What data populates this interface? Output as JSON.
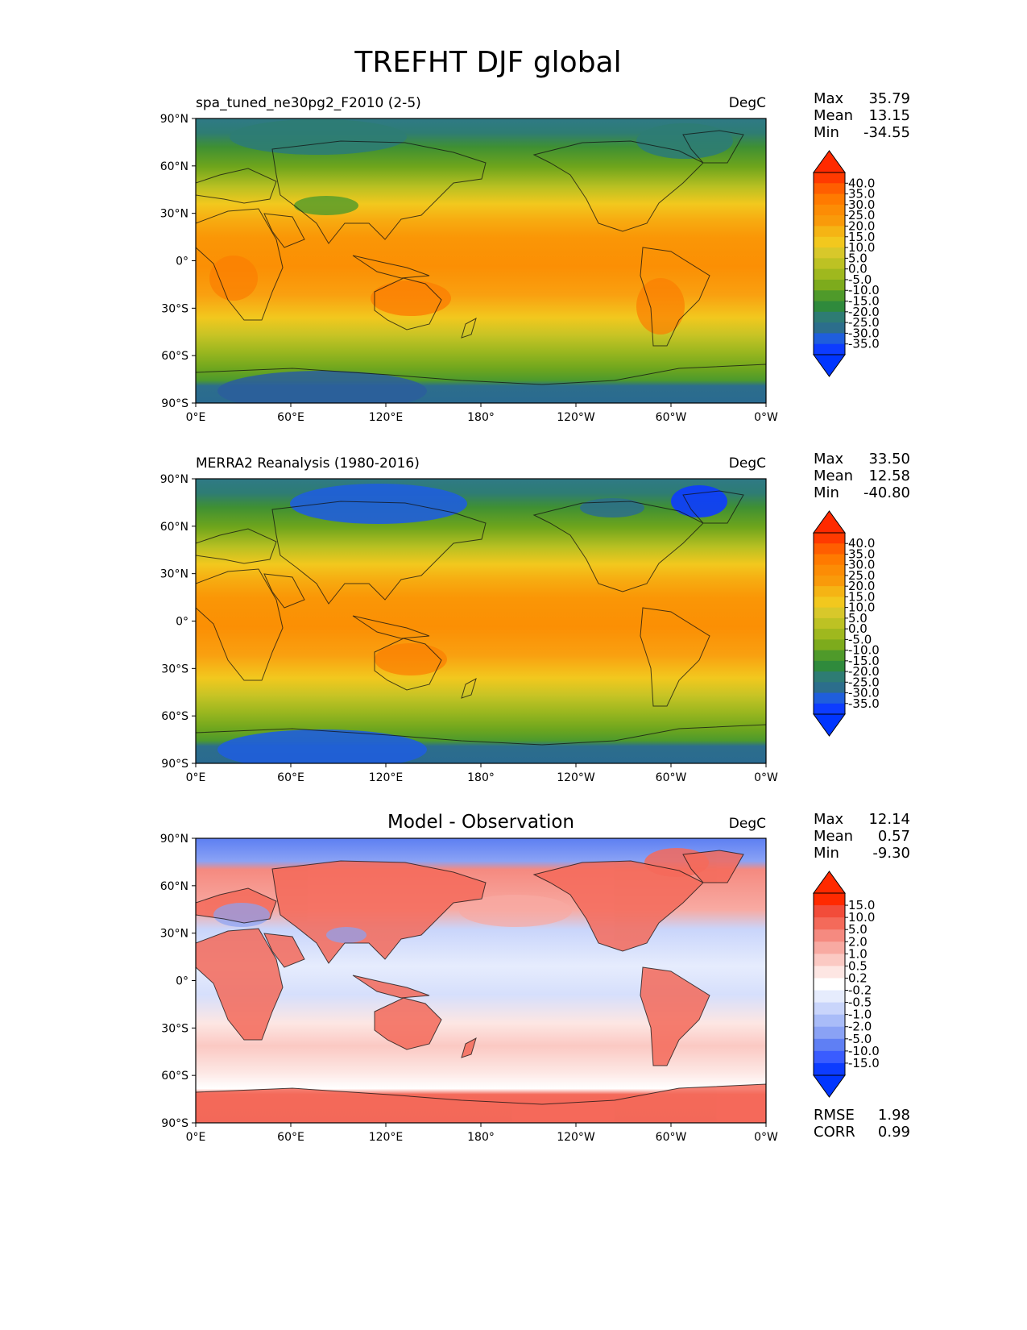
{
  "figure": {
    "title": "TREFHT DJF global"
  },
  "axes": {
    "lat_ticks": [
      "90°N",
      "60°N",
      "30°N",
      "0°",
      "30°S",
      "60°S",
      "90°S"
    ],
    "lon_ticks": [
      "0°E",
      "60°E",
      "120°E",
      "180°",
      "120°W",
      "60°W",
      "0°W"
    ]
  },
  "colorbars": {
    "temperature": {
      "labels": [
        "40.0",
        "35.0",
        "30.0",
        "25.0",
        "20.0",
        "15.0",
        "10.0",
        "5.0",
        "0.0",
        "-5.0",
        "-10.0",
        "-15.0",
        "-20.0",
        "-25.0",
        "-30.0",
        "-35.0"
      ],
      "colors": [
        "#ff3a00",
        "#ff5e00",
        "#ff7a00",
        "#fc8c05",
        "#f99a0a",
        "#f5b414",
        "#f2c81e",
        "#d8c82a",
        "#bdc223",
        "#9fb81e",
        "#7dab1c",
        "#4f9a2a",
        "#2f8a3c",
        "#2e7c74",
        "#2c6e8c",
        "#1f5edc",
        "#0d3cff"
      ],
      "over_color": "#ff2a00",
      "under_color": "#0035ff"
    },
    "difference": {
      "labels": [
        "15.0",
        "10.0",
        "5.0",
        "2.0",
        "1.0",
        "0.5",
        "0.2",
        "-0.2",
        "-0.5",
        "-1.0",
        "-2.0",
        "-5.0",
        "-10.0",
        "-15.0"
      ],
      "colors": [
        "#ff2a00",
        "#f24c3a",
        "#f46a5a",
        "#f58a80",
        "#f8aaa2",
        "#fbc9c3",
        "#fde6e3",
        "#ffffff",
        "#e6ecfd",
        "#c9d5fb",
        "#a9bcf8",
        "#8aa2f5",
        "#5f7ff4",
        "#3a5cff",
        "#0d3cff"
      ],
      "over_color": "#ff2a00",
      "under_color": "#0035ff"
    }
  },
  "panels": [
    {
      "left_title": "spa_tuned_ne30pg2_F2010 (2-5)",
      "units": "DegC",
      "stats": [
        {
          "label": "Max",
          "value": "35.79"
        },
        {
          "label": "Mean",
          "value": "13.15"
        },
        {
          "label": "Min",
          "value": "-34.55"
        }
      ]
    },
    {
      "left_title": "MERRA2 Reanalysis (1980-2016)",
      "units": "DegC",
      "stats": [
        {
          "label": "Max",
          "value": "33.50"
        },
        {
          "label": "Mean",
          "value": "12.58"
        },
        {
          "label": "Min",
          "value": "-40.80"
        }
      ]
    },
    {
      "center_title": "Model - Observation",
      "units": "DegC",
      "stats": [
        {
          "label": "Max",
          "value": "12.14"
        },
        {
          "label": "Mean",
          "value": "0.57"
        },
        {
          "label": "Min",
          "value": "-9.30"
        }
      ],
      "metrics": [
        {
          "label": "RMSE",
          "value": "1.98"
        },
        {
          "label": "CORR",
          "value": "0.99"
        }
      ]
    }
  ]
}
